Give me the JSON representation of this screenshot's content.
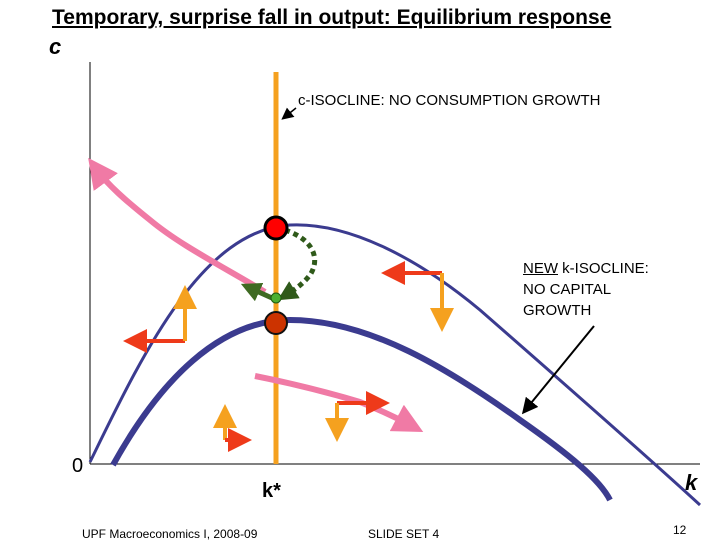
{
  "title": "Temporary, surprise fall in output: Equilibrium response",
  "axes": {
    "y_label": "c",
    "origin_label": "0",
    "x_label": "k",
    "k_star_label": "k*"
  },
  "annotations": {
    "c_isocline": "c-ISOCLINE: NO CONSUMPTION GROWTH",
    "new_k_isocline_prefix": "NEW",
    "new_k_isocline_rest": " k-ISOCLINE:",
    "new_k_isocline_line2": "NO CAPITAL",
    "new_k_isocline_line3": "GROWTH"
  },
  "footer": {
    "left": "UPF Macroeconomics I, 2008-09",
    "middle": "SLIDE SET 4",
    "page_number": "12"
  },
  "colors": {
    "curve": "#3b3b8f",
    "isocline": "#f5a11f",
    "saddle_path": "#f07aa5",
    "arrow_horizontal": "#ee3a1a",
    "arrow_vertical": "#f5a11f",
    "old_steady_state": "#ff0000",
    "new_steady_state": "#cc3300",
    "jump_point": "#4caf30",
    "dotted_path": "#2f5a1a",
    "transition_arrow": "#3f6a22"
  }
}
